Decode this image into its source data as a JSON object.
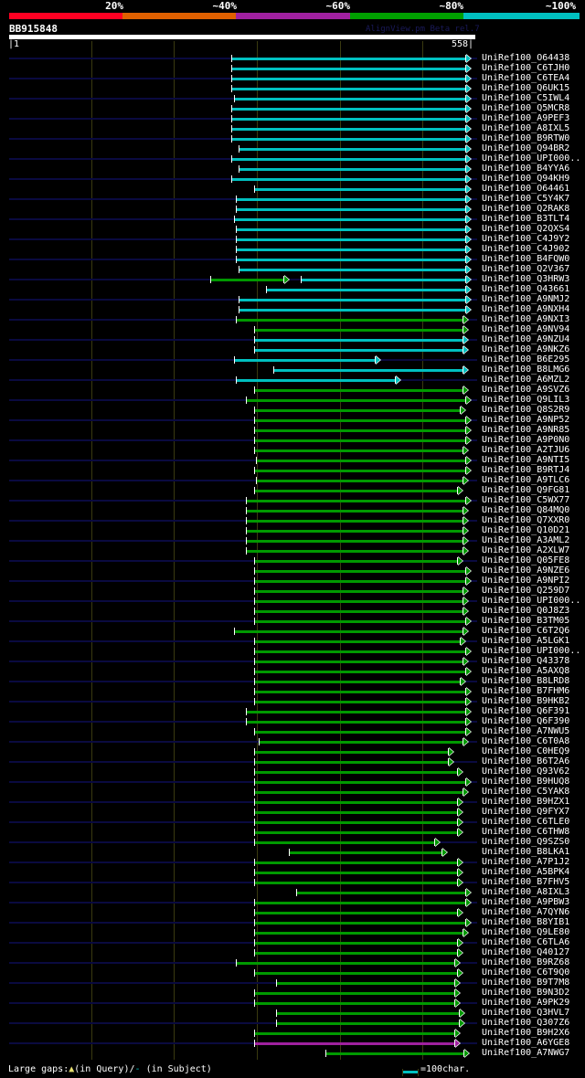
{
  "header": {
    "percent_labels": [
      "20%",
      "~40%",
      "~60%",
      "~80%",
      "~100%"
    ],
    "percent_colors": [
      "#ff0022",
      "#e06000",
      "#a020a0",
      "#00a000",
      "#00c0c0"
    ],
    "query_id": "BB915848",
    "credit": "AlignView.pm Beta rel.7",
    "ruler_start": "|1",
    "ruler_end": "558|",
    "query_length": 558
  },
  "colors": {
    "cyan": "#00c0c0",
    "green": "#009900",
    "magenta": "#a020a0",
    "track": "#0a0a40",
    "grid": "#3a3a10"
  },
  "grid_every": 100,
  "rows": [
    {
      "label": "UniRef100_O64438",
      "hits": [
        [
          269,
          555,
          "cyan"
        ]
      ]
    },
    {
      "label": "UniRef100_C6TJH0",
      "hits": [
        [
          269,
          555,
          "cyan"
        ]
      ]
    },
    {
      "label": "UniRef100_C6TEA4",
      "hits": [
        [
          269,
          555,
          "cyan"
        ]
      ]
    },
    {
      "label": "UniRef100_Q6UK15",
      "hits": [
        [
          269,
          555,
          "cyan"
        ]
      ]
    },
    {
      "label": "UniRef100_C5IWL4",
      "hits": [
        [
          272,
          555,
          "cyan"
        ]
      ]
    },
    {
      "label": "UniRef100_Q5MCR8",
      "hits": [
        [
          269,
          555,
          "cyan"
        ]
      ]
    },
    {
      "label": "UniRef100_A9PEF3",
      "hits": [
        [
          269,
          555,
          "cyan"
        ]
      ]
    },
    {
      "label": "UniRef100_A8IXL5",
      "hits": [
        [
          269,
          555,
          "cyan"
        ]
      ]
    },
    {
      "label": "UniRef100_B9RTW0",
      "hits": [
        [
          269,
          555,
          "cyan"
        ]
      ]
    },
    {
      "label": "UniRef100_Q94BR2",
      "hits": [
        [
          278,
          555,
          "cyan"
        ]
      ]
    },
    {
      "label": "UniRef100_UPI000..",
      "hits": [
        [
          269,
          555,
          "cyan"
        ]
      ]
    },
    {
      "label": "UniRef100_B4YYA6",
      "hits": [
        [
          278,
          555,
          "cyan"
        ]
      ]
    },
    {
      "label": "UniRef100_Q94KH9",
      "hits": [
        [
          269,
          555,
          "cyan"
        ]
      ]
    },
    {
      "label": "UniRef100_O64461",
      "hits": [
        [
          297,
          555,
          "cyan"
        ]
      ]
    },
    {
      "label": "UniRef100_C5Y4K7",
      "hits": [
        [
          275,
          555,
          "cyan"
        ]
      ]
    },
    {
      "label": "UniRef100_Q2RAK8",
      "hits": [
        [
          275,
          555,
          "cyan"
        ]
      ]
    },
    {
      "label": "UniRef100_B3TLT4",
      "hits": [
        [
          272,
          555,
          "cyan"
        ]
      ]
    },
    {
      "label": "UniRef100_Q2QXS4",
      "hits": [
        [
          275,
          555,
          "cyan"
        ]
      ]
    },
    {
      "label": "UniRef100_C4J9Y2",
      "hits": [
        [
          275,
          555,
          "cyan"
        ]
      ]
    },
    {
      "label": "UniRef100_C4J902",
      "hits": [
        [
          275,
          555,
          "cyan"
        ]
      ]
    },
    {
      "label": "UniRef100_B4FQW0",
      "hits": [
        [
          275,
          555,
          "cyan"
        ]
      ]
    },
    {
      "label": "UniRef100_Q2V367",
      "hits": [
        [
          278,
          555,
          "cyan"
        ]
      ]
    },
    {
      "label": "UniRef100_Q3HRW3",
      "hits": [
        [
          244,
          335,
          "green"
        ],
        [
          353,
          555,
          "cyan"
        ]
      ]
    },
    {
      "label": "UniRef100_Q43661",
      "hits": [
        [
          311,
          555,
          "cyan"
        ]
      ]
    },
    {
      "label": "UniRef100_A9NMJ2",
      "hits": [
        [
          278,
          555,
          "cyan"
        ]
      ]
    },
    {
      "label": "UniRef100_A9NXH4",
      "hits": [
        [
          278,
          555,
          "cyan"
        ]
      ]
    },
    {
      "label": "UniRef100_A9NXI3",
      "hits": [
        [
          275,
          551,
          "green"
        ]
      ]
    },
    {
      "label": "UniRef100_A9NV94",
      "hits": [
        [
          297,
          551,
          "green"
        ]
      ]
    },
    {
      "label": "UniRef100_A9NZU4",
      "hits": [
        [
          297,
          551,
          "cyan"
        ]
      ]
    },
    {
      "label": "UniRef100_A9NKZ6",
      "hits": [
        [
          297,
          551,
          "cyan"
        ]
      ]
    },
    {
      "label": "UniRef100_B6E295",
      "hits": [
        [
          272,
          446,
          "cyan"
        ]
      ]
    },
    {
      "label": "UniRef100_B8LMG6",
      "hits": [
        [
          320,
          551,
          "cyan"
        ]
      ]
    },
    {
      "label": "UniRef100_A6MZL2",
      "hits": [
        [
          275,
          470,
          "cyan"
        ]
      ]
    },
    {
      "label": "UniRef100_A9SVZ6",
      "hits": [
        [
          297,
          551,
          "green"
        ]
      ]
    },
    {
      "label": "UniRef100_Q9LIL3",
      "hits": [
        [
          287,
          555,
          "green"
        ]
      ]
    },
    {
      "label": "UniRef100_Q8S2R9",
      "hits": [
        [
          297,
          548,
          "green"
        ]
      ]
    },
    {
      "label": "UniRef100_A9NP52",
      "hits": [
        [
          297,
          555,
          "green"
        ]
      ]
    },
    {
      "label": "UniRef100_A9NR85",
      "hits": [
        [
          297,
          555,
          "green"
        ]
      ]
    },
    {
      "label": "UniRef100_A9P0N0",
      "hits": [
        [
          297,
          555,
          "green"
        ]
      ]
    },
    {
      "label": "UniRef100_A2TJU6",
      "hits": [
        [
          297,
          551,
          "green"
        ]
      ]
    },
    {
      "label": "UniRef100_A9NTI5",
      "hits": [
        [
          299,
          555,
          "green"
        ]
      ]
    },
    {
      "label": "UniRef100_B9RTJ4",
      "hits": [
        [
          297,
          555,
          "green"
        ]
      ]
    },
    {
      "label": "UniRef100_A9TLC6",
      "hits": [
        [
          299,
          551,
          "green"
        ]
      ]
    },
    {
      "label": "UniRef100_Q9FG81",
      "hits": [
        [
          297,
          545,
          "green"
        ]
      ]
    },
    {
      "label": "UniRef100_C5WX77",
      "hits": [
        [
          287,
          555,
          "green"
        ]
      ]
    },
    {
      "label": "UniRef100_Q84MQ0",
      "hits": [
        [
          287,
          551,
          "green"
        ]
      ]
    },
    {
      "label": "UniRef100_Q7XXR0",
      "hits": [
        [
          287,
          551,
          "green"
        ]
      ]
    },
    {
      "label": "UniRef100_Q10D21",
      "hits": [
        [
          287,
          551,
          "green"
        ]
      ]
    },
    {
      "label": "UniRef100_A3AML2",
      "hits": [
        [
          287,
          551,
          "green"
        ]
      ]
    },
    {
      "label": "UniRef100_A2XLW7",
      "hits": [
        [
          287,
          551,
          "green"
        ]
      ]
    },
    {
      "label": "UniRef100_Q05FE8",
      "hits": [
        [
          297,
          545,
          "green"
        ]
      ]
    },
    {
      "label": "UniRef100_A9NZE6",
      "hits": [
        [
          297,
          555,
          "green"
        ]
      ]
    },
    {
      "label": "UniRef100_A9NPI2",
      "hits": [
        [
          297,
          555,
          "green"
        ]
      ]
    },
    {
      "label": "UniRef100_Q259D7",
      "hits": [
        [
          297,
          551,
          "green"
        ]
      ]
    },
    {
      "label": "UniRef100_UPI000..",
      "hits": [
        [
          297,
          551,
          "green"
        ]
      ]
    },
    {
      "label": "UniRef100_Q0J8Z3",
      "hits": [
        [
          297,
          551,
          "green"
        ]
      ]
    },
    {
      "label": "UniRef100_B3TM05",
      "hits": [
        [
          297,
          555,
          "green"
        ]
      ]
    },
    {
      "label": "UniRef100_C6T2Q6",
      "hits": [
        [
          272,
          551,
          "green"
        ]
      ]
    },
    {
      "label": "UniRef100_A5LGK1",
      "hits": [
        [
          297,
          548,
          "green"
        ]
      ]
    },
    {
      "label": "UniRef100_UPI000..",
      "hits": [
        [
          297,
          555,
          "green"
        ]
      ]
    },
    {
      "label": "UniRef100_Q43378",
      "hits": [
        [
          297,
          551,
          "green"
        ]
      ]
    },
    {
      "label": "UniRef100_A5AXQ8",
      "hits": [
        [
          297,
          555,
          "green"
        ]
      ]
    },
    {
      "label": "UniRef100_B8LRD8",
      "hits": [
        [
          297,
          548,
          "green"
        ]
      ]
    },
    {
      "label": "UniRef100_B7FHM6",
      "hits": [
        [
          297,
          555,
          "green"
        ]
      ]
    },
    {
      "label": "UniRef100_B9HKB2",
      "hits": [
        [
          297,
          555,
          "green"
        ]
      ]
    },
    {
      "label": "UniRef100_Q6F391",
      "hits": [
        [
          287,
          555,
          "green"
        ]
      ]
    },
    {
      "label": "UniRef100_Q6F390",
      "hits": [
        [
          287,
          555,
          "green"
        ]
      ]
    },
    {
      "label": "UniRef100_A7NWU5",
      "hits": [
        [
          297,
          555,
          "green"
        ]
      ]
    },
    {
      "label": "UniRef100_C6T0A8",
      "hits": [
        [
          302,
          551,
          "green"
        ]
      ]
    },
    {
      "label": "UniRef100_C0HEQ9",
      "hits": [
        [
          297,
          534,
          "green"
        ]
      ]
    },
    {
      "label": "UniRef100_B6T2A6",
      "hits": [
        [
          297,
          534,
          "green"
        ]
      ]
    },
    {
      "label": "UniRef100_Q93V62",
      "hits": [
        [
          297,
          545,
          "green"
        ]
      ]
    },
    {
      "label": "UniRef100_B9HUQ8",
      "hits": [
        [
          297,
          555,
          "green"
        ]
      ]
    },
    {
      "label": "UniRef100_C5YAK8",
      "hits": [
        [
          297,
          551,
          "green"
        ]
      ]
    },
    {
      "label": "UniRef100_B9HZX1",
      "hits": [
        [
          297,
          545,
          "green"
        ]
      ]
    },
    {
      "label": "UniRef100_Q9FYX7",
      "hits": [
        [
          297,
          545,
          "green"
        ]
      ]
    },
    {
      "label": "UniRef100_C6TLE0",
      "hits": [
        [
          297,
          545,
          "green"
        ]
      ]
    },
    {
      "label": "UniRef100_C6THW8",
      "hits": [
        [
          297,
          545,
          "green"
        ]
      ]
    },
    {
      "label": "UniRef100_Q9SZS0",
      "hits": [
        [
          297,
          517,
          "green"
        ]
      ]
    },
    {
      "label": "UniRef100_B8LKA1",
      "hits": [
        [
          339,
          526,
          "green"
        ]
      ]
    },
    {
      "label": "UniRef100_A7P1J2",
      "hits": [
        [
          297,
          545,
          "green"
        ]
      ]
    },
    {
      "label": "UniRef100_A5BPK4",
      "hits": [
        [
          297,
          545,
          "green"
        ]
      ]
    },
    {
      "label": "UniRef100_B7FHV5",
      "hits": [
        [
          297,
          545,
          "green"
        ]
      ]
    },
    {
      "label": "UniRef100_A8IXL3",
      "hits": [
        [
          347,
          555,
          "green"
        ]
      ]
    },
    {
      "label": "UniRef100_A9PBW3",
      "hits": [
        [
          297,
          555,
          "green"
        ]
      ]
    },
    {
      "label": "UniRef100_A7QYN6",
      "hits": [
        [
          297,
          545,
          "green"
        ]
      ]
    },
    {
      "label": "UniRef100_B8YIB1",
      "hits": [
        [
          297,
          555,
          "green"
        ]
      ]
    },
    {
      "label": "UniRef100_Q9LE80",
      "hits": [
        [
          297,
          551,
          "green"
        ]
      ]
    },
    {
      "label": "UniRef100_C6TLA6",
      "hits": [
        [
          297,
          545,
          "green"
        ]
      ]
    },
    {
      "label": "UniRef100_Q40127",
      "hits": [
        [
          297,
          545,
          "green"
        ]
      ]
    },
    {
      "label": "UniRef100_B9RZ68",
      "hits": [
        [
          275,
          541,
          "green"
        ]
      ]
    },
    {
      "label": "UniRef100_C6T9Q0",
      "hits": [
        [
          297,
          545,
          "green"
        ]
      ]
    },
    {
      "label": "UniRef100_B9T7M8",
      "hits": [
        [
          323,
          541,
          "green"
        ]
      ]
    },
    {
      "label": "UniRef100_B9N3D2",
      "hits": [
        [
          297,
          541,
          "green"
        ]
      ]
    },
    {
      "label": "UniRef100_A9PK29",
      "hits": [
        [
          297,
          541,
          "green"
        ]
      ]
    },
    {
      "label": "UniRef100_Q3HVL7",
      "hits": [
        [
          323,
          547,
          "green"
        ]
      ]
    },
    {
      "label": "UniRef100_Q307Z6",
      "hits": [
        [
          323,
          547,
          "green"
        ]
      ]
    },
    {
      "label": "UniRef100_B9H2X6",
      "hits": [
        [
          297,
          541,
          "green"
        ]
      ]
    },
    {
      "label": "UniRef100_A6YGE8",
      "hits": [
        [
          297,
          541,
          "magenta"
        ]
      ]
    },
    {
      "label": "UniRef100_A7NWG7",
      "hits": [
        [
          383,
          553,
          "green"
        ]
      ]
    }
  ],
  "footer": {
    "gaps_label": "Large gaps:",
    "query_gap_text": "(in Query)/",
    "subject_gap_text": "(in Subject)",
    "scale_label": "=100char."
  }
}
